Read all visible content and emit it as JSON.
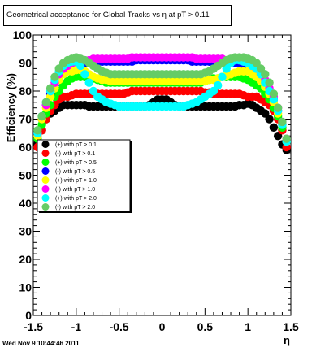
{
  "title": "Geometrical acceptance for Global Tracks vs    η at pT > 0.11",
  "timestamp": "Wed Nov  9 10:44:46 2011",
  "chart_data": {
    "type": "scatter",
    "xlabel": "η",
    "ylabel": "Efficiency (%)",
    "xlim": [
      -1.5,
      1.5
    ],
    "ylim": [
      0,
      100
    ],
    "xticks": [
      "-1.5",
      "-1",
      "-0.5",
      "0",
      "0.5",
      "1",
      "1.5"
    ],
    "yticks": [
      "0",
      "10",
      "20",
      "30",
      "40",
      "50",
      "60",
      "70",
      "80",
      "90",
      "100"
    ],
    "legend_position": "middle-left",
    "x": [
      -1.45,
      -1.4,
      -1.35,
      -1.3,
      -1.25,
      -1.2,
      -1.15,
      -1.1,
      -1.05,
      -1.0,
      -0.95,
      -0.9,
      -0.85,
      -0.8,
      -0.75,
      -0.7,
      -0.65,
      -0.6,
      -0.55,
      -0.5,
      -0.45,
      -0.4,
      -0.35,
      -0.3,
      -0.25,
      -0.2,
      -0.15,
      -0.1,
      -0.05,
      0.0,
      0.05,
      0.1,
      0.15,
      0.2,
      0.25,
      0.3,
      0.35,
      0.4,
      0.45,
      0.5,
      0.55,
      0.6,
      0.65,
      0.7,
      0.75,
      0.8,
      0.85,
      0.9,
      0.95,
      1.0,
      1.05,
      1.1,
      1.15,
      1.2,
      1.25,
      1.3,
      1.35,
      1.4,
      1.45
    ],
    "series": [
      {
        "name": "(+) with pT > 0.1",
        "color": "#000000",
        "values": [
          61,
          66,
          70,
          72,
          73,
          74,
          75,
          75,
          75,
          75,
          75,
          75,
          74.5,
          74.5,
          74.5,
          74.5,
          74.5,
          74.5,
          74.5,
          74.5,
          74.5,
          74.5,
          74.5,
          74.5,
          74.5,
          74.5,
          75,
          76,
          77,
          77,
          77,
          76,
          75,
          74.5,
          74.5,
          74.5,
          74.5,
          74.5,
          74.5,
          74.5,
          74.5,
          74.5,
          74.5,
          74.5,
          74.5,
          74.5,
          74.5,
          75,
          75,
          75.5,
          75,
          74,
          73,
          72,
          70,
          67,
          64,
          61,
          59
        ]
      },
      {
        "name": "(-) with pT > 0.1",
        "color": "#ff0000",
        "values": [
          60,
          66,
          70,
          73,
          75,
          77,
          78,
          78,
          78.5,
          79,
          79,
          79,
          79,
          79,
          79,
          79,
          79,
          79,
          79,
          79,
          79,
          79.5,
          80,
          80,
          80,
          80,
          80,
          80,
          80,
          80,
          80,
          80,
          80,
          80,
          80,
          80,
          80,
          80,
          80,
          79.5,
          79.5,
          79,
          79,
          79,
          79,
          79,
          79,
          79,
          78.5,
          78,
          78,
          78,
          77,
          76,
          75,
          73,
          70,
          66,
          60
        ]
      },
      {
        "name": "(+) with pT > 0.5",
        "color": "#00ff00",
        "values": [
          63,
          68,
          72,
          75,
          78,
          80,
          82,
          83.5,
          84.5,
          85,
          85,
          85,
          84.5,
          84.5,
          84,
          83.5,
          83,
          83,
          83,
          83,
          83,
          83,
          83,
          83,
          83,
          83,
          83,
          83,
          83,
          83,
          83,
          83,
          83,
          83,
          83,
          83,
          83,
          83,
          83,
          83.5,
          84,
          84.5,
          84.5,
          85,
          85,
          85,
          85,
          85,
          84.5,
          84,
          83,
          82,
          81,
          79,
          77,
          74,
          71,
          67,
          62
        ]
      },
      {
        "name": "(-) with pT > 0.5",
        "color": "#0000ff",
        "values": [
          64,
          70,
          75,
          79,
          82,
          85,
          87,
          88,
          89,
          89.5,
          90,
          90,
          90,
          90,
          90.5,
          90.5,
          90.5,
          90.5,
          90.5,
          90.5,
          90.5,
          90.5,
          90.5,
          91,
          91,
          91,
          91,
          91,
          91,
          91,
          91,
          91,
          91,
          91,
          91,
          91,
          90.5,
          90.5,
          90.5,
          90.5,
          90.5,
          90.5,
          90.5,
          90,
          90,
          90,
          90,
          90,
          89.5,
          89,
          88,
          87,
          85,
          83,
          80,
          77,
          73,
          68,
          62
        ]
      },
      {
        "name": "(+) with pT > 1.0",
        "color": "#ffff00",
        "values": [
          64,
          70,
          74,
          78,
          81,
          84,
          86,
          87,
          87,
          87.5,
          87.5,
          87,
          86,
          85,
          84.5,
          84,
          84,
          83.5,
          83.5,
          83.5,
          83.5,
          83.5,
          83.5,
          83.5,
          83.5,
          83.5,
          83.5,
          83.5,
          83.5,
          83.5,
          83.5,
          83.5,
          83.5,
          83.5,
          83.5,
          83.5,
          83.5,
          83.5,
          83.5,
          83.5,
          84,
          84,
          84.5,
          85,
          85.5,
          86,
          86.5,
          87,
          87,
          87,
          86,
          85,
          83.5,
          81.5,
          79,
          76,
          72,
          68,
          62
        ]
      },
      {
        "name": "(-) with pT > 1.0",
        "color": "#ff00ff",
        "values": [
          65,
          71,
          75,
          80,
          83,
          86,
          88,
          89,
          90,
          90.5,
          91,
          91,
          91,
          91.5,
          91.5,
          91.5,
          91.5,
          91.5,
          91.5,
          91.5,
          91.5,
          91.5,
          92,
          92,
          92,
          92,
          92,
          92,
          92,
          92,
          92,
          92,
          92,
          92,
          92,
          92,
          92,
          91.5,
          91.5,
          91.5,
          91.5,
          91.5,
          91.5,
          91.5,
          91,
          91,
          91,
          91,
          90.5,
          90,
          89,
          88,
          86,
          84,
          81,
          78,
          74,
          69,
          63
        ]
      },
      {
        "name": "(+) with pT > 2.0",
        "color": "#00ffff",
        "values": [
          65,
          71,
          76,
          80,
          84,
          87,
          89,
          90,
          90.5,
          90.5,
          89,
          86,
          83,
          80,
          78,
          77,
          76,
          75.5,
          75,
          74.5,
          74.5,
          74.5,
          74.5,
          74.5,
          74.5,
          74.5,
          74.5,
          74.5,
          74.5,
          74.5,
          74.5,
          74.5,
          74.5,
          74.5,
          74.5,
          75,
          75.5,
          76,
          77,
          78,
          79,
          80,
          82,
          85,
          88,
          90,
          91,
          91,
          90.5,
          90,
          89,
          88,
          86,
          83,
          80,
          77,
          73,
          68,
          62
        ]
      },
      {
        "name": "(-) with pT > 2.0",
        "color": "#66cc66",
        "values": [
          66,
          71,
          76,
          81,
          85,
          88,
          90,
          91,
          91.5,
          92,
          91.5,
          91,
          90,
          89,
          88,
          87,
          86.5,
          86,
          86,
          86,
          86,
          86,
          86,
          86,
          86,
          86,
          86,
          86,
          86,
          86,
          86,
          86,
          86,
          86,
          86,
          86,
          86,
          86,
          86,
          86.5,
          87,
          88,
          89,
          90,
          91,
          91.5,
          92,
          92,
          92,
          91.5,
          91,
          90,
          88,
          86,
          83,
          79,
          74,
          69,
          63
        ]
      }
    ]
  }
}
